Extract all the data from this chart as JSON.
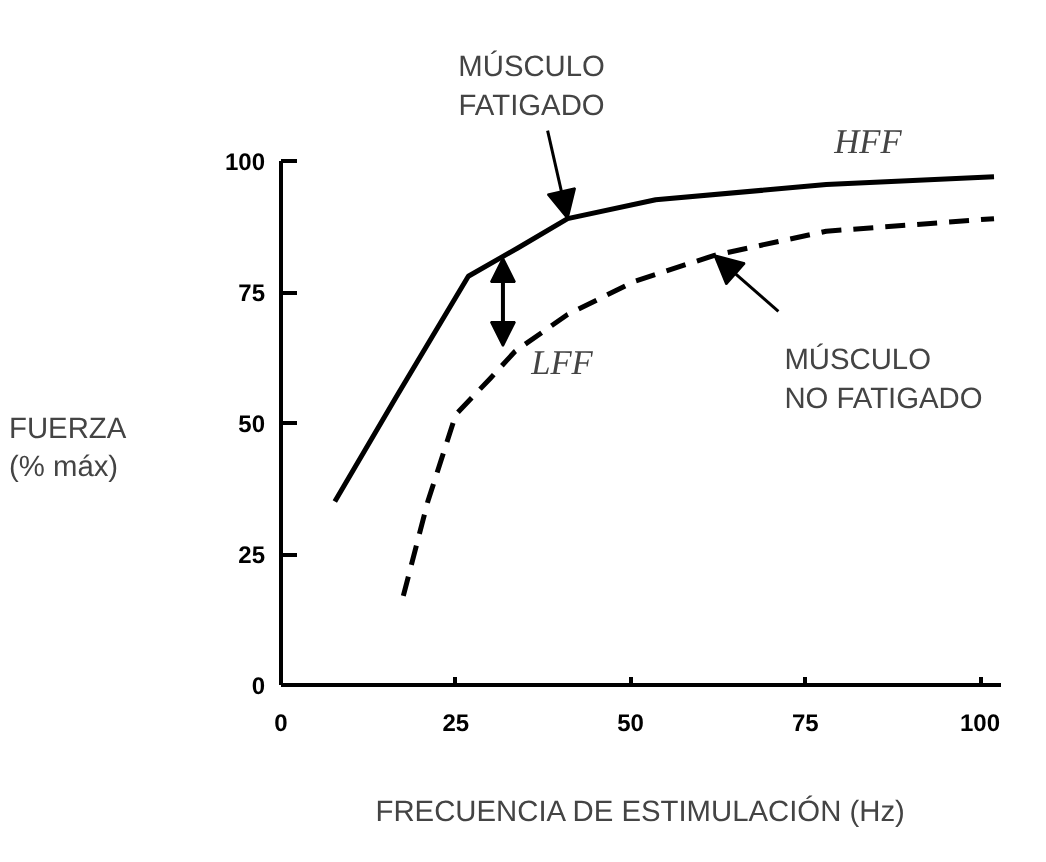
{
  "chart_data": {
    "type": "line",
    "xlabel": "FRECUENCIA DE ESTIMULACIÓN (Hz)",
    "ylabel": "FUERZA\n(% máx)",
    "xlim": [
      0,
      103
    ],
    "ylim": [
      0,
      100
    ],
    "xticks": [
      0,
      25,
      50,
      75,
      100
    ],
    "yticks": [
      0,
      25,
      50,
      75,
      100
    ],
    "grid": false,
    "series": [
      {
        "name": "HFF",
        "color": "#000000",
        "line_style": "solid",
        "x": [
          7.7,
          16.5,
          26.8,
          34,
          41,
          53.6,
          78,
          102
        ],
        "values": [
          35,
          55,
          78,
          83.5,
          89,
          92.6,
          95.5,
          97
        ]
      },
      {
        "name": "LFF",
        "color": "#000000",
        "line_style": "dashed",
        "x": [
          17.5,
          21,
          25,
          30,
          33.5,
          41,
          50.5,
          62,
          78,
          102
        ],
        "values": [
          17,
          35,
          51.6,
          58.6,
          63.7,
          70.7,
          77,
          82,
          86.6,
          89
        ]
      }
    ],
    "annotations": [
      {
        "text": "MÚSCULO\nFATIGADO",
        "x": 41,
        "y": 89
      },
      {
        "text": "MÚSCULO\nNO FATIGADO",
        "x": 62,
        "y": 82
      }
    ]
  }
}
